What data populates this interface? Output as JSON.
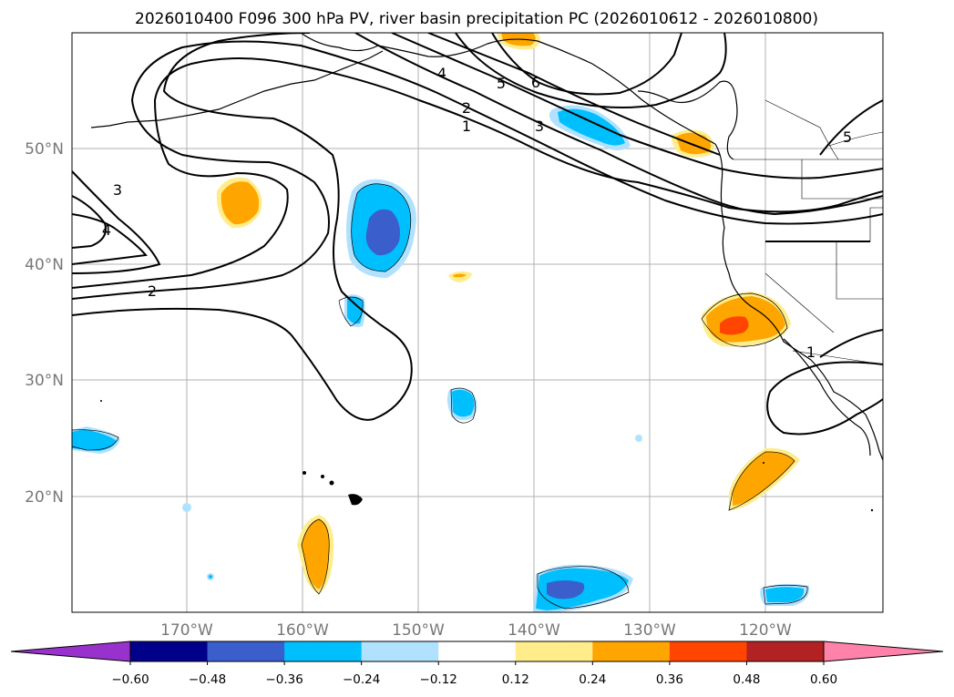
{
  "title": "2026010400 F096 300 hPa PV, river basin precipitation PC (2026010612 - 2026010800)",
  "map": {
    "lon_ticks": [
      "170°W",
      "160°W",
      "150°W",
      "140°W",
      "130°W",
      "120°W"
    ],
    "lat_ticks": [
      "50°N",
      "40°N",
      "30°N",
      "20°N"
    ],
    "pv_contour_labels": [
      "1",
      "2",
      "3",
      "4",
      "5",
      "6",
      "2",
      "3",
      "4",
      "1",
      "5"
    ]
  },
  "colorbar": {
    "tick_labels": [
      "−0.60",
      "−0.48",
      "−0.36",
      "−0.24",
      "−0.12",
      "0.12",
      "0.24",
      "0.36",
      "0.48",
      "0.60"
    ],
    "colors": [
      "#9932cc",
      "#00008b",
      "#3a5fcd",
      "#00bfff",
      "#b0e2ff",
      "#ffffff",
      "#ffec8b",
      "#ffa500",
      "#ff4500",
      "#b22222",
      "#ff82ab"
    ]
  }
}
